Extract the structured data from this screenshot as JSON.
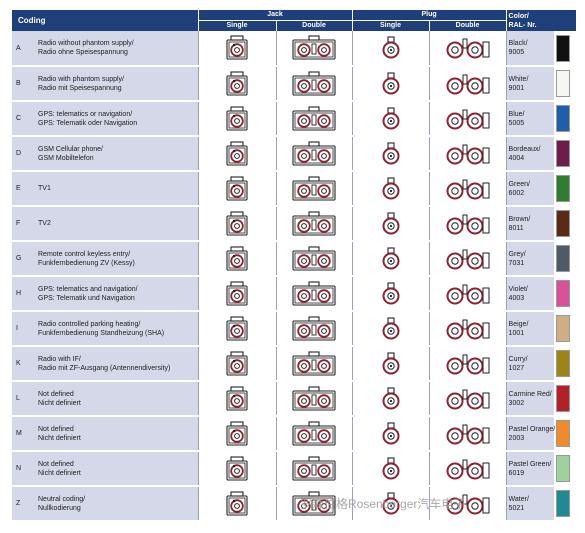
{
  "header": {
    "coding": "Coding",
    "jack": "Jack",
    "plug": "Plug",
    "color": "Color/",
    "ral": "RAL- Nr.",
    "single": "Single",
    "double": "Double"
  },
  "rows": [
    {
      "code": "A",
      "line1": "Radio without phantom supply/",
      "line2": "Radio ohne Speisespannung",
      "color_name": "Black/",
      "ral": "9005",
      "color": "#111111"
    },
    {
      "code": "B",
      "line1": "Radio with phantom supply/",
      "line2": "Radio mit Speisespannung",
      "color_name": "White/",
      "ral": "9001",
      "color": "#f6f6f2"
    },
    {
      "code": "C",
      "line1": "GPS: telematics or navigation/",
      "line2": "GPS: Telematik oder Navigation",
      "color_name": "Blue/",
      "ral": "5005",
      "color": "#1f5ea8"
    },
    {
      "code": "D",
      "line1": "GSM Cellular phone/",
      "line2": "GSM Mobiltelefon",
      "color_name": "Bordeaux/",
      "ral": "4004",
      "color": "#6b1e4b"
    },
    {
      "code": "E",
      "line1": "TV1",
      "line2": "",
      "color_name": "Green/",
      "ral": "6002",
      "color": "#2e7d32"
    },
    {
      "code": "F",
      "line1": "TV2",
      "line2": "",
      "color_name": "Brown/",
      "ral": "8011",
      "color": "#5a2a16"
    },
    {
      "code": "G",
      "line1": "Remote control keyless entry/",
      "line2": "Funkfernbedienung ZV (Kessy)",
      "color_name": "Grey/",
      "ral": "7031",
      "color": "#4e5a66"
    },
    {
      "code": "H",
      "line1": "GPS: telematics and navigation/",
      "line2": "GPS: Telematik und Navigation",
      "color_name": "Violet/",
      "ral": "4003",
      "color": "#d8529a"
    },
    {
      "code": "I",
      "line1": "Radio controlled parking heating/",
      "line2": "Funkfernbedienung Standheizung (SHA)",
      "color_name": "Beige/",
      "ral": "1001",
      "color": "#cfae84"
    },
    {
      "code": "K",
      "line1": "Radio with IF/",
      "line2": "Radio mit ZF-Ausgang (Antennendiversity)",
      "color_name": "Curry/",
      "ral": "1027",
      "color": "#9c8516"
    },
    {
      "code": "L",
      "line1": "Not defined",
      "line2": "Nicht definiert",
      "color_name": "Carmine Red/",
      "ral": "3002",
      "color": "#b3202a"
    },
    {
      "code": "M",
      "line1": "Not defined",
      "line2": "Nicht definiert",
      "color_name": "Pastel Orange/",
      "ral": "2003",
      "color": "#f08a2b"
    },
    {
      "code": "N",
      "line1": "Not defined",
      "line2": "Nicht definiert",
      "color_name": "Pastel Green/",
      "ral": "6019",
      "color": "#9fd19a"
    },
    {
      "code": "Z",
      "line1": "Neutral coding/",
      "line2": "Nullkodierung",
      "color_name": "Water/",
      "ral": "5021",
      "color": "#1f8a96"
    }
  ],
  "watermark": "罗森伯格Rosenberger汽车电子"
}
